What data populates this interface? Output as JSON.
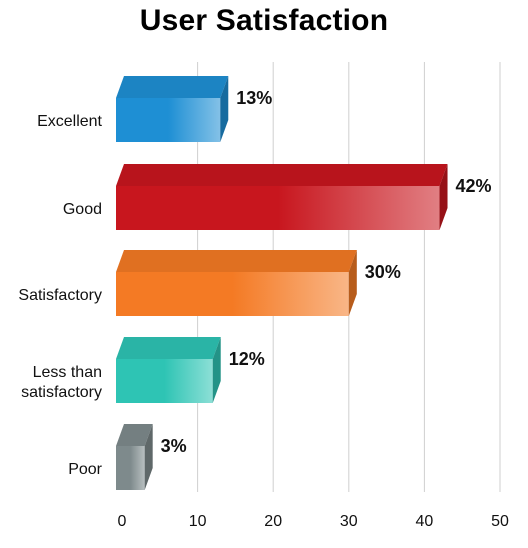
{
  "chart_data": {
    "type": "bar",
    "orientation": "horizontal",
    "title": "User Satisfaction",
    "xlabel": "",
    "ylabel": "",
    "categories": [
      [
        "Excellent"
      ],
      [
        "Good"
      ],
      [
        "Satisfactory"
      ],
      [
        "Less than",
        "satisfactory"
      ],
      [
        "Poor"
      ]
    ],
    "values": [
      13,
      42,
      30,
      12,
      3
    ],
    "value_labels": [
      "13%",
      "42%",
      "30%",
      "12%",
      "3%"
    ],
    "colors": [
      "#1e8fd4",
      "#c8161e",
      "#f47a24",
      "#2ec4b4",
      "#7e8a8c"
    ],
    "xlim": [
      0,
      50
    ],
    "xticks": [
      0,
      10,
      20,
      30,
      40,
      50
    ],
    "xtick_labels": [
      "0",
      "10",
      "20",
      "30",
      "40",
      "50"
    ],
    "grid": true,
    "bar_style": "3d"
  }
}
